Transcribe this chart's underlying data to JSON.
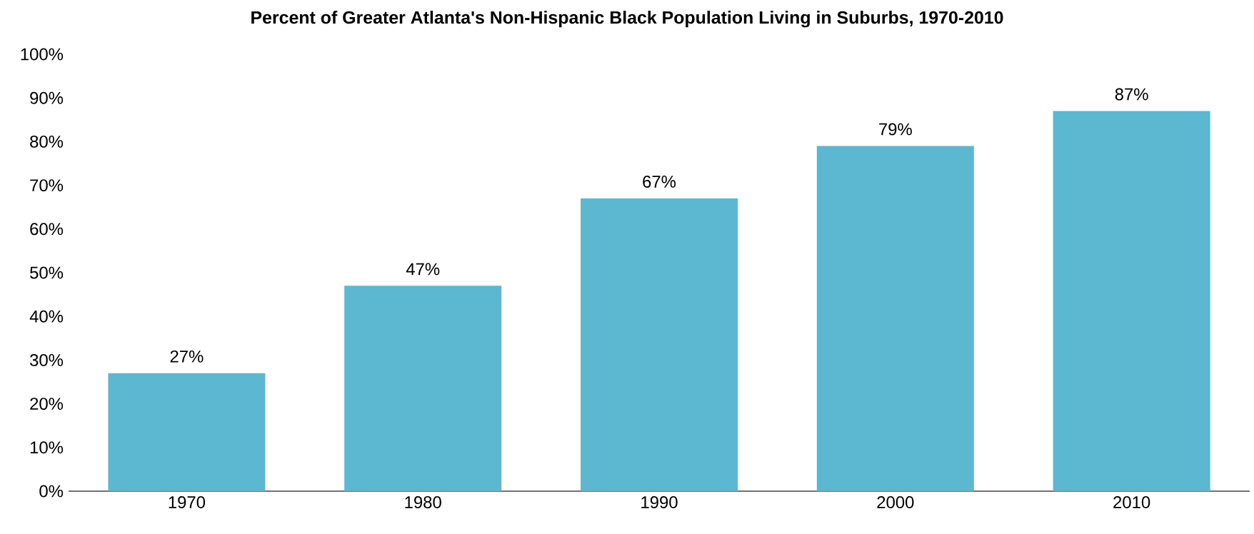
{
  "chart_data": {
    "type": "bar",
    "title": "Percent of Greater Atlanta's Non-Hispanic Black Population Living in Suburbs, 1970-2010",
    "categories": [
      "1970",
      "1980",
      "1990",
      "2000",
      "2010"
    ],
    "values": [
      27,
      47,
      67,
      79,
      87
    ],
    "value_labels": [
      "27%",
      "47%",
      "67%",
      "79%",
      "87%"
    ],
    "color": "#5bb8d0",
    "ylim": [
      0,
      100
    ],
    "yticks": [
      {
        "value": 0,
        "label": "0%"
      },
      {
        "value": 10,
        "label": "10%"
      },
      {
        "value": 20,
        "label": "20%"
      },
      {
        "value": 30,
        "label": "30%"
      },
      {
        "value": 40,
        "label": "40%"
      },
      {
        "value": 50,
        "label": "50%"
      },
      {
        "value": 60,
        "label": "60%"
      },
      {
        "value": 70,
        "label": "70%"
      },
      {
        "value": 80,
        "label": "80%"
      },
      {
        "value": 90,
        "label": "90%"
      },
      {
        "value": 100,
        "label": "100%"
      }
    ],
    "grid": false
  }
}
